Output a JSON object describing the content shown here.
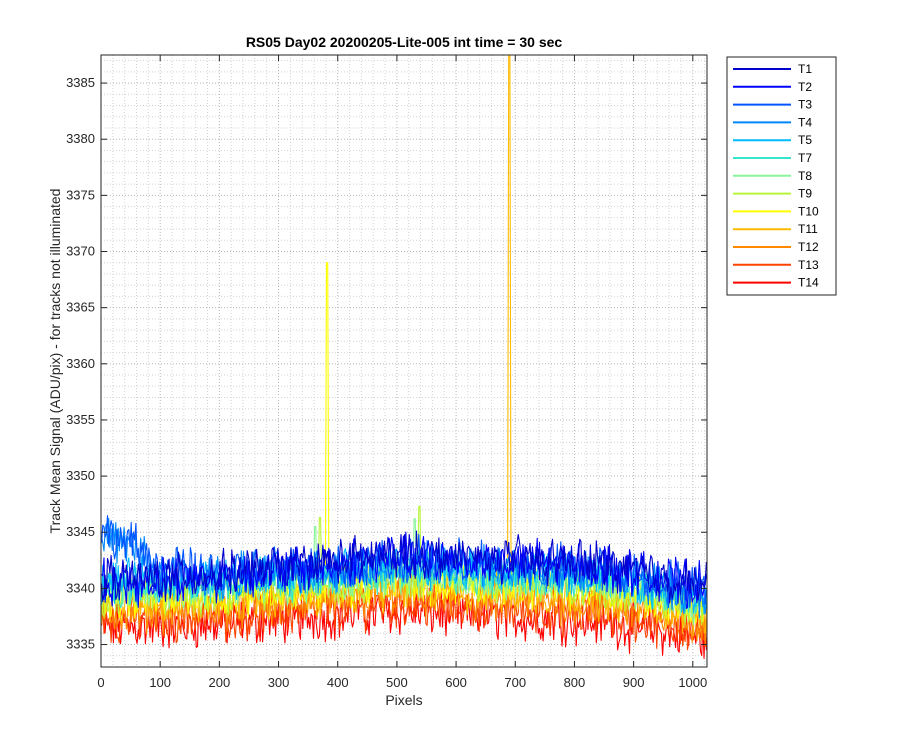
{
  "chart_data": {
    "type": "line",
    "title": "RS05 Day02 20200205-Lite-005 int time = 30 sec",
    "xlabel": "Pixels",
    "ylabel": "Track Mean Signal (ADU/pix) - for tracks not illuminated",
    "xlim": [
      0,
      1024
    ],
    "ylim": [
      3333,
      3387.5
    ],
    "xticks": [
      0,
      100,
      200,
      300,
      400,
      500,
      600,
      700,
      800,
      900,
      1000
    ],
    "yticks": [
      3335,
      3340,
      3345,
      3350,
      3355,
      3360,
      3365,
      3370,
      3375,
      3380,
      3385
    ],
    "grid": "major and minor, dotted",
    "legend_position": "outside-right",
    "series": [
      {
        "name": "T1",
        "color": "#0000cc",
        "mean": 3342.0,
        "amplitude": 1.6,
        "profile": [
          [
            0,
            3341.0
          ],
          [
            50,
            3340.8
          ],
          [
            200,
            3341.3
          ],
          [
            500,
            3343.0
          ],
          [
            850,
            3342.2
          ],
          [
            1024,
            3340.2
          ]
        ]
      },
      {
        "name": "T2",
        "color": "#0000ff",
        "mean": 3341.8,
        "amplitude": 1.6,
        "profile": [
          [
            0,
            3340.8
          ],
          [
            50,
            3340.5
          ],
          [
            200,
            3341.0
          ],
          [
            500,
            3342.8
          ],
          [
            850,
            3342.0
          ],
          [
            1024,
            3340.0
          ]
        ]
      },
      {
        "name": "T3",
        "color": "#0055ff",
        "mean": 3341.6,
        "amplitude": 1.6,
        "profile": [
          [
            0,
            3344.8
          ],
          [
            50,
            3344.0
          ],
          [
            100,
            3341.8
          ],
          [
            200,
            3341.3
          ],
          [
            500,
            3342.5
          ],
          [
            850,
            3341.8
          ],
          [
            1024,
            3339.8
          ]
        ]
      },
      {
        "name": "T4",
        "color": "#0088ff",
        "mean": 3341.4,
        "amplitude": 1.6,
        "profile": [
          [
            0,
            3344.8
          ],
          [
            50,
            3343.6
          ],
          [
            100,
            3341.5
          ],
          [
            200,
            3341.0
          ],
          [
            500,
            3342.2
          ],
          [
            850,
            3341.5
          ],
          [
            1024,
            3339.5
          ]
        ]
      },
      {
        "name": "T5",
        "color": "#00bbff",
        "mean": 3341.0,
        "amplitude": 1.5,
        "profile": [
          [
            0,
            3340.5
          ],
          [
            200,
            3340.8
          ],
          [
            500,
            3342.0
          ],
          [
            850,
            3341.2
          ],
          [
            1024,
            3339.4
          ]
        ]
      },
      {
        "name": "T7",
        "color": "#33e6cc",
        "mean": 3340.5,
        "amplitude": 1.5,
        "profile": [
          [
            0,
            3340.0
          ],
          [
            200,
            3340.3
          ],
          [
            500,
            3341.6
          ],
          [
            850,
            3340.8
          ],
          [
            1024,
            3339.0
          ]
        ]
      },
      {
        "name": "T8",
        "color": "#88f59a",
        "mean": 3340.2,
        "amplitude": 1.5,
        "profile": [
          [
            0,
            3339.7
          ],
          [
            200,
            3340.0
          ],
          [
            500,
            3341.3
          ],
          [
            850,
            3340.5
          ],
          [
            1024,
            3338.7
          ]
        ],
        "spikes": [
          [
            362,
            3345.5
          ],
          [
            530,
            3346.2
          ]
        ]
      },
      {
        "name": "T9",
        "color": "#b8f53a",
        "mean": 3339.9,
        "amplitude": 1.5,
        "profile": [
          [
            0,
            3339.4
          ],
          [
            200,
            3339.7
          ],
          [
            500,
            3341.0
          ],
          [
            850,
            3340.2
          ],
          [
            1024,
            3338.4
          ]
        ],
        "spikes": [
          [
            538,
            3347.3
          ],
          [
            370,
            3346.3
          ]
        ]
      },
      {
        "name": "T10",
        "color": "#ffff00",
        "mean": 3339.6,
        "amplitude": 1.5,
        "profile": [
          [
            0,
            3339.2
          ],
          [
            200,
            3339.4
          ],
          [
            500,
            3340.7
          ],
          [
            850,
            3339.9
          ],
          [
            1024,
            3338.1
          ]
        ],
        "spikes": [
          [
            382,
            3369.0
          ]
        ]
      },
      {
        "name": "T11",
        "color": "#ffbb00",
        "mean": 3339.0,
        "amplitude": 1.6,
        "profile": [
          [
            0,
            3338.7
          ],
          [
            200,
            3338.9
          ],
          [
            500,
            3340.0
          ],
          [
            850,
            3339.3
          ],
          [
            1024,
            3337.6
          ]
        ],
        "spikes": [
          [
            690,
            3387.5
          ]
        ]
      },
      {
        "name": "T12",
        "color": "#ff8800",
        "mean": 3338.4,
        "amplitude": 1.6,
        "profile": [
          [
            0,
            3338.0
          ],
          [
            200,
            3338.3
          ],
          [
            500,
            3339.4
          ],
          [
            850,
            3338.6
          ],
          [
            1024,
            3337.0
          ]
        ]
      },
      {
        "name": "T13",
        "color": "#ff4400",
        "mean": 3337.6,
        "amplitude": 1.7,
        "profile": [
          [
            0,
            3337.2
          ],
          [
            200,
            3337.5
          ],
          [
            500,
            3338.7
          ],
          [
            850,
            3337.8
          ],
          [
            1024,
            3336.2
          ]
        ]
      },
      {
        "name": "T14",
        "color": "#ff0000",
        "mean": 3336.9,
        "amplitude": 1.7,
        "profile": [
          [
            0,
            3336.5
          ],
          [
            200,
            3336.8
          ],
          [
            500,
            3338.0
          ],
          [
            850,
            3337.0
          ],
          [
            1024,
            3335.5
          ]
        ]
      }
    ]
  }
}
